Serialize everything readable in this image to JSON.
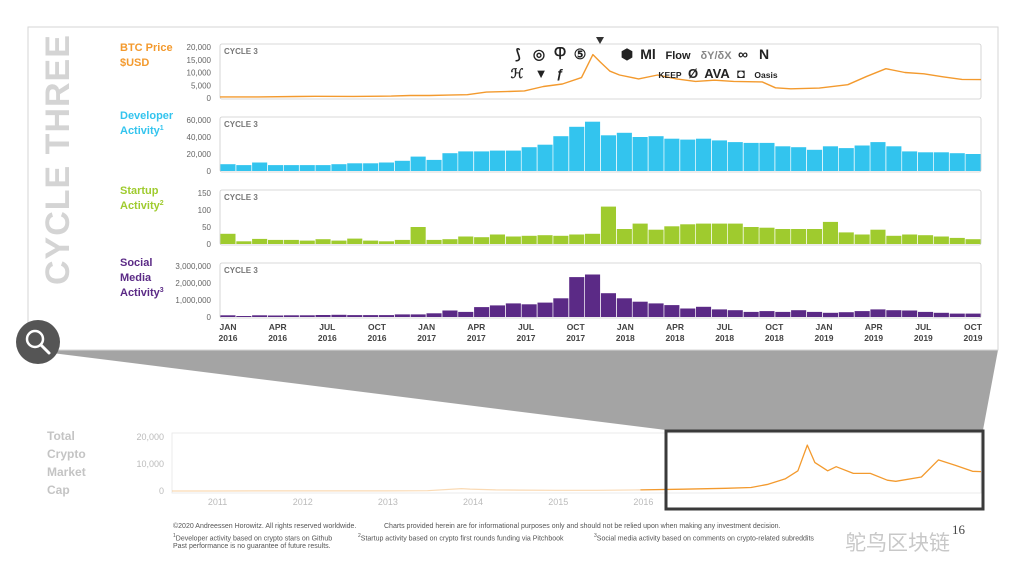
{
  "side_title": "CYCLE THREE",
  "colors": {
    "btc": "#f39a2e",
    "developer": "#33c4ee",
    "startup": "#9fcb2e",
    "social": "#5b2a86",
    "frame": "#cccccc",
    "bottom_line": "#f6b56a",
    "callout": "#9a9a9a",
    "zoom_box": "#3a3a3a"
  },
  "chart_data": [
    {
      "type": "line",
      "panel": "btc",
      "title_lines": [
        "BTC Price",
        "$USD"
      ],
      "cycle_label": "CYCLE 3",
      "ylim": [
        0,
        20000
      ],
      "y_ticks": [
        "20,000",
        "15,000",
        "10,000",
        "5,000",
        "0"
      ],
      "x_start": 2016.0,
      "x_end": 2020.0,
      "points": [
        [
          2016.0,
          430
        ],
        [
          2016.2,
          420
        ],
        [
          2016.4,
          580
        ],
        [
          2016.5,
          660
        ],
        [
          2016.7,
          610
        ],
        [
          2016.9,
          740
        ],
        [
          2017.0,
          970
        ],
        [
          2017.1,
          1000
        ],
        [
          2017.2,
          1150
        ],
        [
          2017.3,
          1300
        ],
        [
          2017.4,
          2300
        ],
        [
          2017.5,
          2500
        ],
        [
          2017.6,
          2800
        ],
        [
          2017.7,
          4500
        ],
        [
          2017.8,
          5500
        ],
        [
          2017.9,
          8000
        ],
        [
          2017.96,
          17000
        ],
        [
          2018.0,
          14000
        ],
        [
          2018.05,
          10500
        ],
        [
          2018.1,
          9000
        ],
        [
          2018.2,
          7500
        ],
        [
          2018.3,
          9000
        ],
        [
          2018.4,
          7500
        ],
        [
          2018.5,
          6500
        ],
        [
          2018.6,
          7000
        ],
        [
          2018.7,
          6500
        ],
        [
          2018.85,
          6300
        ],
        [
          2018.92,
          4000
        ],
        [
          2019.0,
          3600
        ],
        [
          2019.15,
          3900
        ],
        [
          2019.3,
          5200
        ],
        [
          2019.4,
          8500
        ],
        [
          2019.5,
          11500
        ],
        [
          2019.6,
          10000
        ],
        [
          2019.7,
          9500
        ],
        [
          2019.8,
          8300
        ],
        [
          2019.9,
          7300
        ],
        [
          2020.0,
          7200
        ]
      ]
    },
    {
      "type": "bar",
      "panel": "developer",
      "title_lines": [
        "Developer",
        "Activity"
      ],
      "superscript": "1",
      "cycle_label": "CYCLE 3",
      "ylim": [
        0,
        60000
      ],
      "y_ticks": [
        "60,000",
        "40,000",
        "20,000",
        "0"
      ],
      "values": [
        8000,
        7000,
        10000,
        7000,
        7000,
        7000,
        7000,
        8000,
        9000,
        9000,
        10000,
        12000,
        17000,
        13000,
        21000,
        23000,
        23000,
        24000,
        24000,
        28000,
        31000,
        41000,
        52000,
        58000,
        42000,
        45000,
        40000,
        41000,
        38000,
        37000,
        38000,
        36000,
        34000,
        33000,
        33000,
        29000,
        28000,
        25000,
        29000,
        27000,
        30000,
        34000,
        29000,
        23000,
        22000,
        22000,
        21000,
        20000
      ]
    },
    {
      "type": "bar",
      "panel": "startup",
      "title_lines": [
        "Startup",
        "Activity"
      ],
      "superscript": "2",
      "cycle_label": "CYCLE 3",
      "ylim": [
        0,
        150
      ],
      "y_ticks": [
        "150",
        "100",
        "50",
        "0"
      ],
      "values": [
        30,
        8,
        15,
        12,
        12,
        10,
        14,
        10,
        16,
        10,
        8,
        12,
        50,
        12,
        14,
        22,
        20,
        28,
        22,
        24,
        26,
        24,
        28,
        30,
        110,
        44,
        60,
        42,
        52,
        58,
        60,
        60,
        60,
        50,
        48,
        44,
        44,
        44,
        65,
        34,
        28,
        42,
        24,
        28,
        26,
        22,
        18,
        14
      ]
    },
    {
      "type": "bar",
      "panel": "social",
      "title_lines": [
        "Social",
        "Media",
        "Activity"
      ],
      "superscript": "3",
      "cycle_label": "CYCLE 3",
      "ylim": [
        0,
        3000000
      ],
      "y_ticks": [
        "3,000,000",
        "2,000,000",
        "1,000,000",
        "0"
      ],
      "values": [
        100000,
        60000,
        100000,
        90000,
        100000,
        100000,
        120000,
        130000,
        110000,
        110000,
        110000,
        150000,
        150000,
        220000,
        380000,
        300000,
        580000,
        680000,
        800000,
        750000,
        850000,
        1100000,
        2350000,
        2500000,
        1400000,
        1100000,
        900000,
        800000,
        700000,
        500000,
        600000,
        450000,
        400000,
        300000,
        350000,
        300000,
        400000,
        300000,
        250000,
        280000,
        350000,
        450000,
        400000,
        380000,
        300000,
        250000,
        200000,
        200000
      ],
      "x_ticks": [
        [
          "JAN",
          "2016"
        ],
        [
          "APR",
          "2016"
        ],
        [
          "JUL",
          "2016"
        ],
        [
          "OCT",
          "2016"
        ],
        [
          "JAN",
          "2017"
        ],
        [
          "APR",
          "2017"
        ],
        [
          "JUL",
          "2017"
        ],
        [
          "OCT",
          "2017"
        ],
        [
          "JAN",
          "2018"
        ],
        [
          "APR",
          "2018"
        ],
        [
          "JUL",
          "2018"
        ],
        [
          "OCT",
          "2018"
        ],
        [
          "JAN",
          "2019"
        ],
        [
          "APR",
          "2019"
        ],
        [
          "JUL",
          "2019"
        ],
        [
          "OCT",
          "2019"
        ]
      ]
    },
    {
      "type": "line",
      "panel": "total-market-cap",
      "title_lines": [
        "Total",
        "Crypto",
        "Market",
        "Cap"
      ],
      "ylim": [
        0,
        20000
      ],
      "y_ticks": [
        "20,000",
        "10,000",
        "0"
      ],
      "x_ticks": [
        "2011",
        "2012",
        "2013",
        "2014",
        "2015",
        "2016"
      ],
      "x_start": 2010.5,
      "x_end": 2020.0,
      "points": [
        [
          2010.5,
          10
        ],
        [
          2011.0,
          15
        ],
        [
          2011.5,
          20
        ],
        [
          2012.0,
          20
        ],
        [
          2012.5,
          20
        ],
        [
          2013.0,
          30
        ],
        [
          2013.5,
          100
        ],
        [
          2013.9,
          900
        ],
        [
          2014.0,
          700
        ],
        [
          2014.3,
          400
        ],
        [
          2014.6,
          350
        ],
        [
          2015.0,
          250
        ],
        [
          2015.5,
          250
        ],
        [
          2016.0,
          420
        ],
        [
          2016.5,
          650
        ],
        [
          2017.0,
          1000
        ],
        [
          2017.3,
          1300
        ],
        [
          2017.5,
          2500
        ],
        [
          2017.7,
          4500
        ],
        [
          2017.85,
          7500
        ],
        [
          2017.96,
          17000
        ],
        [
          2018.05,
          10500
        ],
        [
          2018.2,
          7500
        ],
        [
          2018.3,
          9000
        ],
        [
          2018.5,
          6500
        ],
        [
          2018.7,
          6500
        ],
        [
          2018.9,
          4000
        ],
        [
          2019.0,
          3600
        ],
        [
          2019.3,
          5200
        ],
        [
          2019.5,
          11500
        ],
        [
          2019.7,
          9500
        ],
        [
          2019.9,
          7300
        ],
        [
          2020.0,
          7200
        ]
      ]
    }
  ],
  "logos_row1": [
    "⟆",
    "◎",
    "Ⴔ",
    "⑤",
    "⬢",
    "Ml",
    "Flow",
    "δY/δX",
    "∞",
    "N"
  ],
  "logos_row2": [
    "ℋ",
    "▼",
    "ƒ",
    "KEEP",
    "Ø",
    "AVA",
    "◘",
    "Oasis"
  ],
  "footer": {
    "copyright": "©2020 Andreessen Horowitz. All rights reserved worldwide.",
    "disclaimer": "Charts provided herein are for informational purposes only and should not be relied upon when making any investment decision.",
    "note1": "Developer activity based on crypto stars on Github",
    "note2": "Startup activity based on crypto first rounds funding via Pitchbook",
    "note3": "Social media activity based on comments on crypto-related subreddits",
    "past": "Past performance is no guarantee of future results."
  },
  "page_number": "16",
  "watermark": "鸵鸟区块链"
}
